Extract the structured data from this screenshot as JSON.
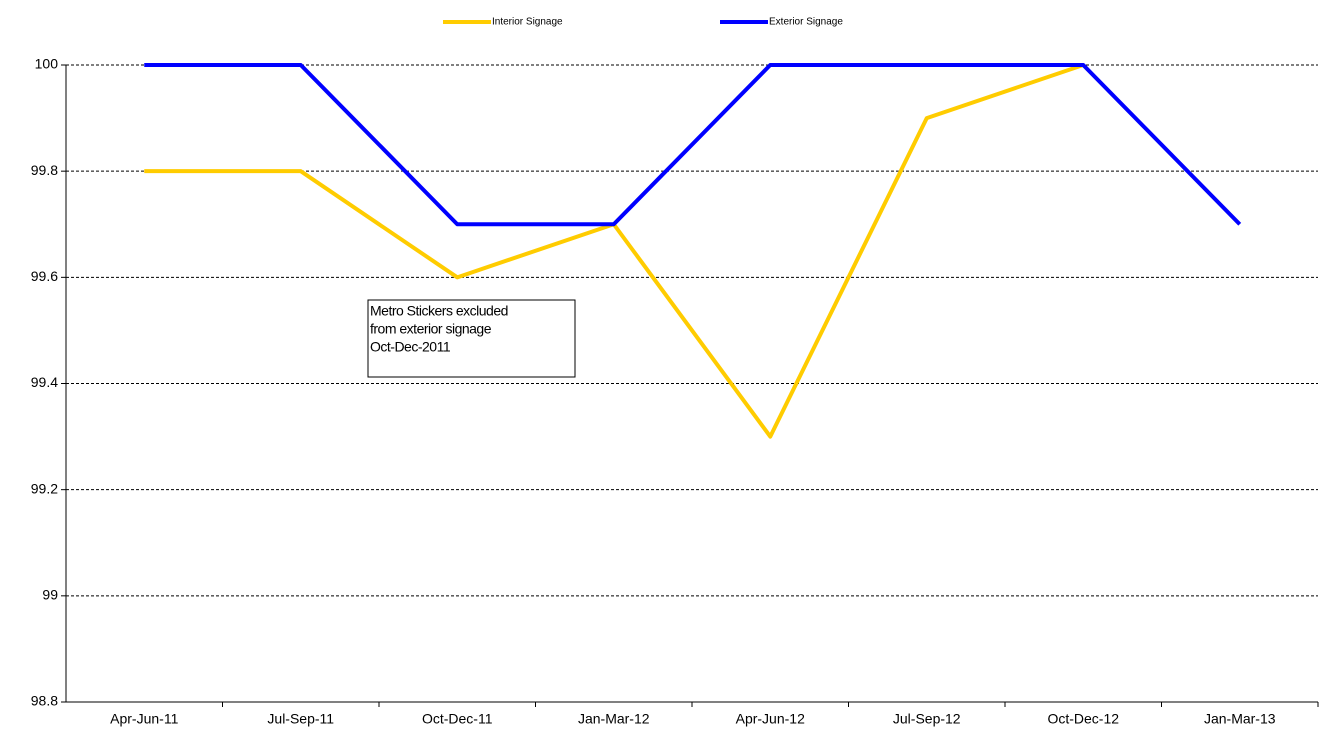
{
  "chart_data": {
    "type": "line",
    "categories": [
      "Apr-Jun-11",
      "Jul-Sep-11",
      "Oct-Dec-11",
      "Jan-Mar-12",
      "Apr-Jun-12",
      "Jul-Sep-12",
      "Oct-Dec-12",
      "Jan-Mar-13"
    ],
    "series": [
      {
        "name": "Interior Signage",
        "color": "#ffcc00",
        "values": [
          99.8,
          99.8,
          99.6,
          99.7,
          99.3,
          99.9,
          100,
          null
        ]
      },
      {
        "name": "Exterior Signage",
        "color": "#0000ff",
        "values": [
          100,
          100,
          99.7,
          99.7,
          100,
          100,
          100,
          99.7
        ]
      }
    ],
    "ylim": [
      98.8,
      100
    ],
    "yticks": [
      98.8,
      99,
      99.2,
      99.4,
      99.6,
      99.8,
      100
    ],
    "grid": true,
    "legend": "top",
    "annotation": [
      "Metro Stickers excluded",
      "from exterior signage",
      "Oct-Dec-2011"
    ]
  }
}
